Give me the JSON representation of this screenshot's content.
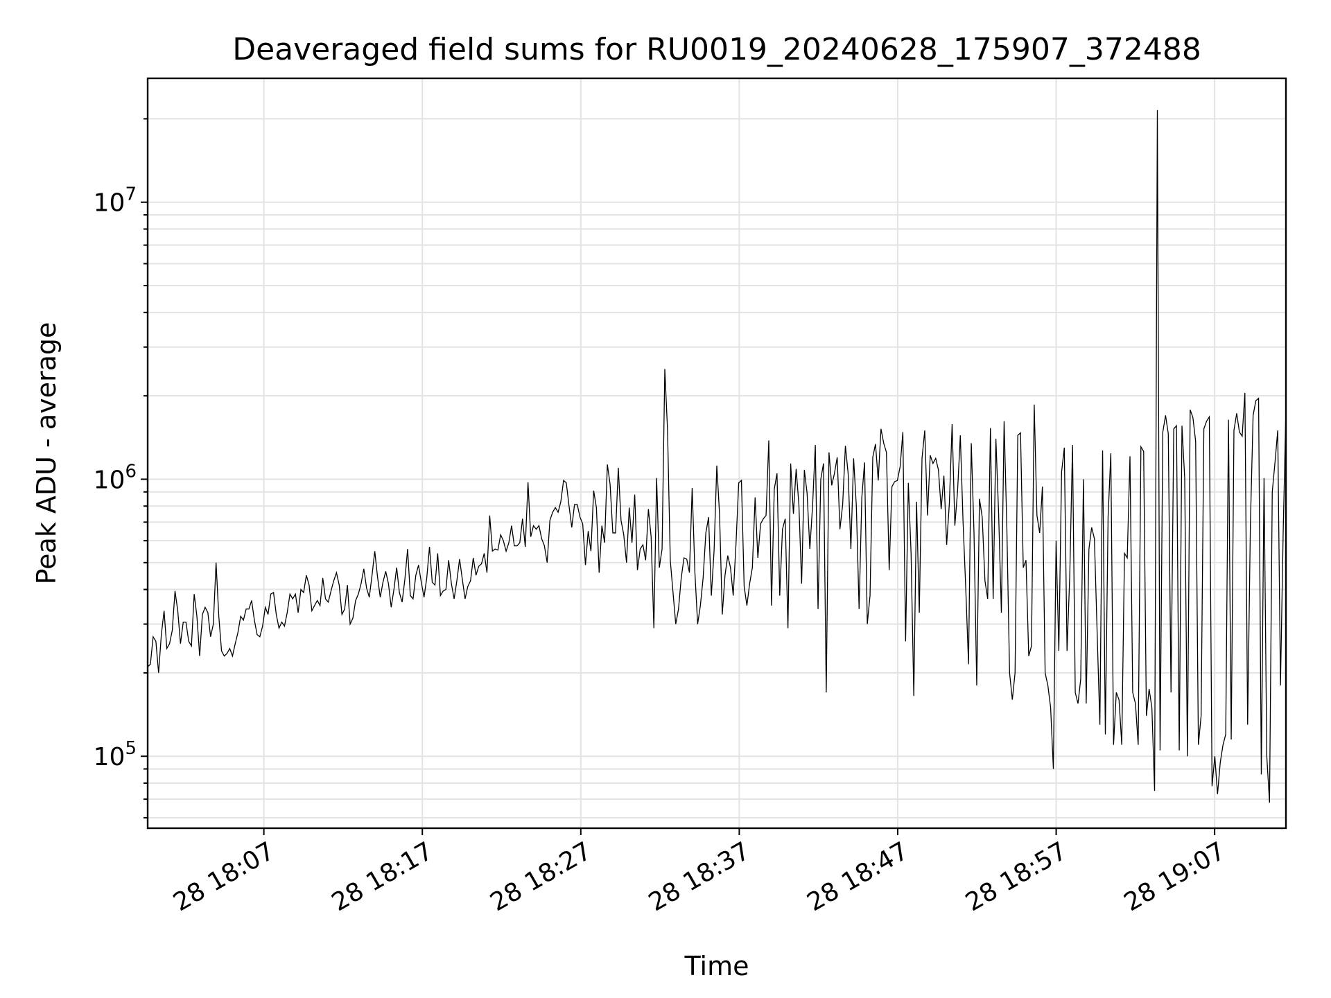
{
  "chart_data": {
    "type": "line",
    "title": "Deaveraged field sums for RU0019_20240628_175907_372488",
    "xlabel": "Time",
    "ylabel": "Peak ADU - average",
    "yscale": "log",
    "grid": true,
    "xlim": [
      "2024-06-28 17:59:40",
      "2024-06-28 19:11:30"
    ],
    "ylim": [
      55000,
      28000000
    ],
    "x_ticks": [
      {
        "value": "2024-06-28 18:07:00",
        "label": "28 18:07"
      },
      {
        "value": "2024-06-28 18:17:00",
        "label": "28 18:17"
      },
      {
        "value": "2024-06-28 18:27:00",
        "label": "28 18:27"
      },
      {
        "value": "2024-06-28 18:37:00",
        "label": "28 18:37"
      },
      {
        "value": "2024-06-28 18:47:00",
        "label": "28 18:47"
      },
      {
        "value": "2024-06-28 18:57:00",
        "label": "28 18:57"
      },
      {
        "value": "2024-06-28 19:07:00",
        "label": "28 19:07"
      }
    ],
    "y_ticks": [
      {
        "value": 100000,
        "base": "10",
        "exp": "5"
      },
      {
        "value": 1000000,
        "base": "10",
        "exp": "6"
      },
      {
        "value": 10000000,
        "base": "10",
        "exp": "7"
      }
    ],
    "series": [
      {
        "color": "#000000",
        "x_start": "2024-06-28 17:59:40",
        "x_end": "2024-06-28 19:11:30",
        "values": [
          210000,
          215000,
          270000,
          260000,
          200000,
          275000,
          335000,
          245000,
          255000,
          285000,
          395000,
          335000,
          255000,
          305000,
          305000,
          260000,
          250000,
          385000,
          320000,
          230000,
          325000,
          345000,
          330000,
          270000,
          300000,
          500000,
          320000,
          240000,
          230000,
          235000,
          245000,
          230000,
          255000,
          280000,
          320000,
          310000,
          340000,
          340000,
          365000,
          310000,
          275000,
          270000,
          295000,
          345000,
          325000,
          385000,
          390000,
          325000,
          290000,
          305000,
          295000,
          330000,
          385000,
          370000,
          385000,
          330000,
          400000,
          390000,
          450000,
          415000,
          335000,
          350000,
          365000,
          350000,
          440000,
          370000,
          360000,
          395000,
          430000,
          460000,
          415000,
          325000,
          340000,
          415000,
          300000,
          315000,
          365000,
          385000,
          420000,
          475000,
          405000,
          375000,
          450000,
          550000,
          445000,
          375000,
          425000,
          465000,
          420000,
          345000,
          400000,
          480000,
          390000,
          360000,
          435000,
          560000,
          380000,
          370000,
          450000,
          490000,
          425000,
          375000,
          440000,
          570000,
          425000,
          415000,
          540000,
          380000,
          395000,
          400000,
          510000,
          420000,
          370000,
          430000,
          515000,
          435000,
          370000,
          410000,
          430000,
          520000,
          450000,
          485000,
          495000,
          540000,
          460000,
          740000,
          550000,
          560000,
          555000,
          630000,
          600000,
          550000,
          590000,
          680000,
          575000,
          575000,
          590000,
          720000,
          570000,
          975000,
          620000,
          680000,
          660000,
          680000,
          610000,
          575000,
          500000,
          710000,
          760000,
          790000,
          760000,
          830000,
          990000,
          970000,
          800000,
          670000,
          810000,
          810000,
          730000,
          690000,
          490000,
          650000,
          550000,
          910000,
          790000,
          460000,
          680000,
          590000,
          1130000,
          960000,
          640000,
          640000,
          1100000,
          710000,
          630000,
          500000,
          790000,
          590000,
          880000,
          470000,
          560000,
          580000,
          510000,
          780000,
          620000,
          290000,
          1010000,
          480000,
          560000,
          2500000,
          1500000,
          510000,
          390000,
          300000,
          340000,
          440000,
          520000,
          515000,
          460000,
          930000,
          460000,
          300000,
          350000,
          440000,
          640000,
          730000,
          380000,
          550000,
          1120000,
          750000,
          325000,
          450000,
          530000,
          480000,
          380000,
          580000,
          970000,
          990000,
          410000,
          350000,
          420000,
          480000,
          860000,
          520000,
          690000,
          720000,
          740000,
          1380000,
          350000,
          920000,
          1050000,
          380000,
          660000,
          720000,
          290000,
          1140000,
          750000,
          1090000,
          810000,
          420000,
          1080000,
          890000,
          560000,
          800000,
          1330000,
          340000,
          1000000,
          1140000,
          170000,
          1250000,
          950000,
          1050000,
          1200000,
          660000,
          810000,
          1320000,
          1050000,
          560000,
          1190000,
          800000,
          340000,
          860000,
          1150000,
          300000,
          380000,
          1200000,
          1340000,
          990000,
          1520000,
          1350000,
          1250000,
          470000,
          940000,
          980000,
          990000,
          1110000,
          1480000,
          260000,
          970000,
          540000,
          165000,
          830000,
          330000,
          1190000,
          1500000,
          740000,
          1220000,
          1140000,
          1190000,
          1080000,
          780000,
          1030000,
          580000,
          820000,
          1580000,
          680000,
          910000,
          1440000,
          700000,
          400000,
          215000,
          1350000,
          640000,
          180000,
          850000,
          730000,
          430000,
          370000,
          1530000,
          370000,
          1400000,
          750000,
          330000,
          1620000,
          670000,
          200000,
          160000,
          200000,
          1440000,
          1470000,
          480000,
          510000,
          230000,
          250000,
          1860000,
          740000,
          640000,
          940000,
          200000,
          180000,
          150000,
          90000,
          600000,
          240000,
          1060000,
          1300000,
          240000,
          450000,
          1330000,
          170000,
          155000,
          190000,
          1000000,
          155000,
          560000,
          670000,
          610000,
          280000,
          130000,
          1270000,
          120000,
          730000,
          1240000,
          110000,
          170000,
          160000,
          110000,
          540000,
          520000,
          1210000,
          170000,
          155000,
          110000,
          1310000,
          1260000,
          140000,
          175000,
          150000,
          75000,
          21500000,
          105000,
          1480000,
          1700000,
          1460000,
          170000,
          1520000,
          1560000,
          105000,
          1560000,
          1010000,
          100000,
          1780000,
          1670000,
          1370000,
          110000,
          140000,
          1520000,
          1620000,
          1680000,
          78000,
          100000,
          73000,
          95000,
          110000,
          120000,
          1640000,
          115000,
          1500000,
          1730000,
          1480000,
          1430000,
          2050000,
          130000,
          680000,
          1700000,
          1920000,
          1960000,
          86000,
          1010000,
          100000,
          68000,
          900000,
          1150000,
          1500000,
          180000,
          650000,
          1800000
        ]
      }
    ]
  }
}
